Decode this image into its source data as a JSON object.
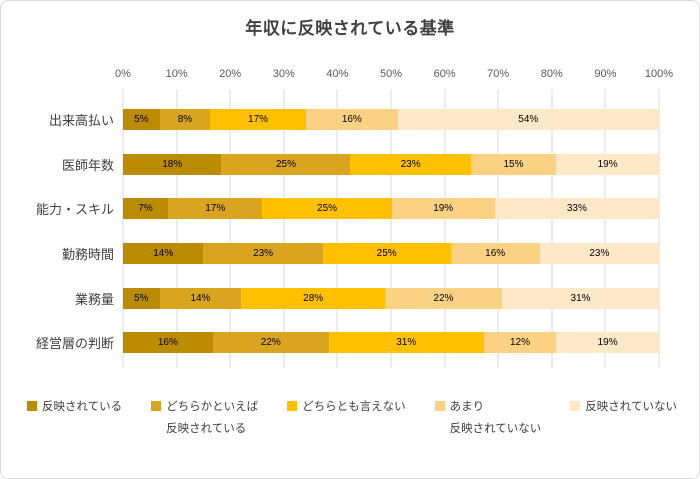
{
  "chart": {
    "title": "年収に反映されている基準"
  },
  "chart_data": {
    "type": "bar",
    "orientation": "horizontal",
    "stacked": true,
    "title": "年収に反映されている基準",
    "categories": [
      "出来高払い",
      "医師年数",
      "能力・スキル",
      "勤務時間",
      "業務量",
      "経営層の判断"
    ],
    "series": [
      {
        "name": "反映されている",
        "color": "#BC8C00",
        "values": [
          5,
          18,
          7,
          14,
          5,
          16
        ]
      },
      {
        "name": "どちらかといえば反映されている",
        "color": "#D9A521",
        "values": [
          8,
          25,
          17,
          23,
          14,
          22
        ]
      },
      {
        "name": "どちらとも言えない",
        "color": "#FFC000",
        "values": [
          17,
          23,
          25,
          25,
          28,
          31
        ]
      },
      {
        "name": "あまり反映されていない",
        "color": "#FBD284",
        "values": [
          16,
          15,
          19,
          16,
          22,
          12
        ]
      },
      {
        "name": "反映されていない",
        "color": "#FDE8C8",
        "values": [
          54,
          19,
          33,
          23,
          31,
          19
        ]
      }
    ],
    "x_ticks": [
      "0%",
      "10%",
      "20%",
      "30%",
      "40%",
      "50%",
      "60%",
      "70%",
      "80%",
      "90%",
      "100%"
    ],
    "xlim": [
      0,
      100
    ],
    "value_suffix": "%",
    "grid": true,
    "legend_position": "bottom",
    "colors": {
      "gridline": "#D9D9D9",
      "title_text": "#404040",
      "axis_text": "#595959",
      "label_text": "#000000"
    }
  },
  "legend": {
    "items": [
      {
        "label": "反映されている",
        "color": "#BC8C00"
      },
      {
        "label": "どちらかといえば\n反映されている",
        "color": "#D9A521"
      },
      {
        "label": "どちらとも言えない",
        "color": "#FFC000"
      },
      {
        "label": "あまり\n反映されていない",
        "color": "#FBD284"
      },
      {
        "label": "反映されていない",
        "color": "#FDE8C8"
      }
    ]
  }
}
